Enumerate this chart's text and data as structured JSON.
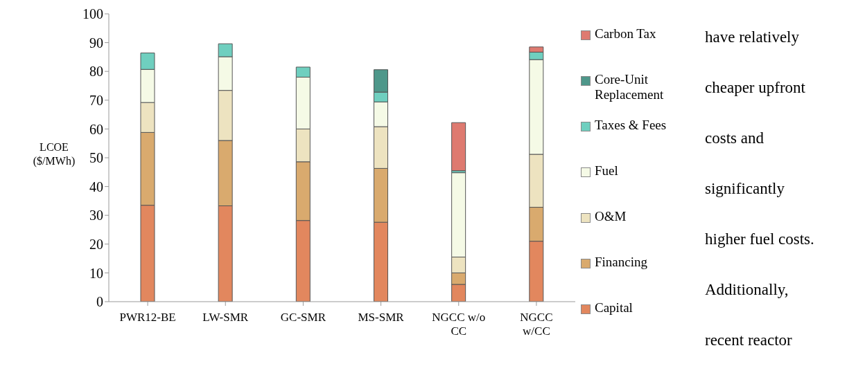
{
  "chart_data": {
    "type": "bar",
    "stacked": true,
    "ylabel": "LCOE ($/MWh)",
    "categories": [
      "PWR12-BE",
      "LW-SMR",
      "GC-SMR",
      "MS-SMR",
      "NGCC w/o CC",
      "NGCC w/CC"
    ],
    "series": [
      {
        "name": "Capital",
        "color": "#e2875e",
        "values": [
          33.5,
          33.3,
          28.2,
          27.6,
          6.0,
          21.0
        ]
      },
      {
        "name": "Financing",
        "color": "#d9aa6e",
        "values": [
          25.3,
          22.7,
          20.4,
          18.7,
          4.0,
          11.8
        ]
      },
      {
        "name": "O&M",
        "color": "#ede3c0",
        "values": [
          10.4,
          17.4,
          11.4,
          14.5,
          5.5,
          18.4
        ]
      },
      {
        "name": "Fuel",
        "color": "#f5fae6",
        "values": [
          11.5,
          11.7,
          18.0,
          8.6,
          29.3,
          32.9
        ]
      },
      {
        "name": "Taxes & Fees",
        "color": "#6fcfbf",
        "values": [
          5.7,
          4.5,
          3.5,
          3.4,
          0.7,
          2.6
        ]
      },
      {
        "name": "Core-Unit Replacement",
        "color": "#4e978a",
        "values": [
          null,
          null,
          null,
          7.8,
          null,
          null
        ]
      },
      {
        "name": "Carbon Tax",
        "color": "#de7a70",
        "values": [
          null,
          null,
          null,
          null,
          16.7,
          1.8
        ]
      }
    ],
    "ylim": [
      0,
      100
    ],
    "yticks": [
      0,
      10,
      20,
      30,
      40,
      50,
      60,
      70,
      80,
      90,
      100
    ],
    "grid": false,
    "legend": "right",
    "annotations": [
      "have relatively",
      "cheaper upfront",
      "costs and",
      "significantly",
      "higher fuel costs.",
      "Additionally,",
      "recent reactor"
    ]
  }
}
